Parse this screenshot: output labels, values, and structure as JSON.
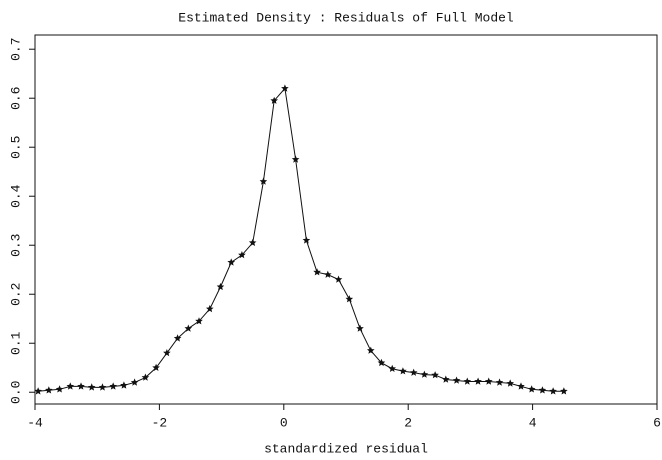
{
  "chart_data": {
    "type": "line",
    "title": "Estimated Density : Residuals of Full Model",
    "x_label": "standardized residual",
    "x": [
      -3.95,
      -3.778,
      -3.605,
      -3.433,
      -3.26,
      -3.088,
      -2.915,
      -2.743,
      -2.57,
      -2.398,
      -2.225,
      -2.053,
      -1.88,
      -1.708,
      -1.535,
      -1.363,
      -1.19,
      -1.018,
      -0.845,
      -0.673,
      -0.5,
      -0.328,
      -0.155,
      0.018,
      0.19,
      0.363,
      0.535,
      0.708,
      0.88,
      1.053,
      1.225,
      1.398,
      1.57,
      1.743,
      1.915,
      2.088,
      2.26,
      2.433,
      2.605,
      2.778,
      2.95,
      3.123,
      3.295,
      3.468,
      3.64,
      3.813,
      3.985,
      4.158,
      4.33,
      4.503
    ],
    "series": [
      {
        "color": "#111111",
        "values": [
          0.002,
          0.004,
          0.006,
          0.012,
          0.012,
          0.01,
          0.01,
          0.012,
          0.014,
          0.02,
          0.03,
          0.05,
          0.08,
          0.11,
          0.13,
          0.145,
          0.17,
          0.215,
          0.265,
          0.28,
          0.305,
          0.43,
          0.595,
          0.62,
          0.475,
          0.31,
          0.245,
          0.24,
          0.23,
          0.19,
          0.13,
          0.085,
          0.06,
          0.048,
          0.043,
          0.04,
          0.036,
          0.035,
          0.026,
          0.024,
          0.022,
          0.022,
          0.022,
          0.02,
          0.018,
          0.012,
          0.006,
          0.004,
          0.002,
          0.002
        ]
      }
    ],
    "xlim": [
      -4,
      6
    ],
    "xticks": [
      -4,
      -2,
      0,
      2,
      4,
      6
    ],
    "ylim": [
      -0.024,
      0.729
    ],
    "yticks": [
      {
        "value": 0,
        "label": "0.0"
      },
      0.1,
      0.2,
      0.3,
      0.4,
      0.5,
      0.6,
      0.7
    ]
  }
}
